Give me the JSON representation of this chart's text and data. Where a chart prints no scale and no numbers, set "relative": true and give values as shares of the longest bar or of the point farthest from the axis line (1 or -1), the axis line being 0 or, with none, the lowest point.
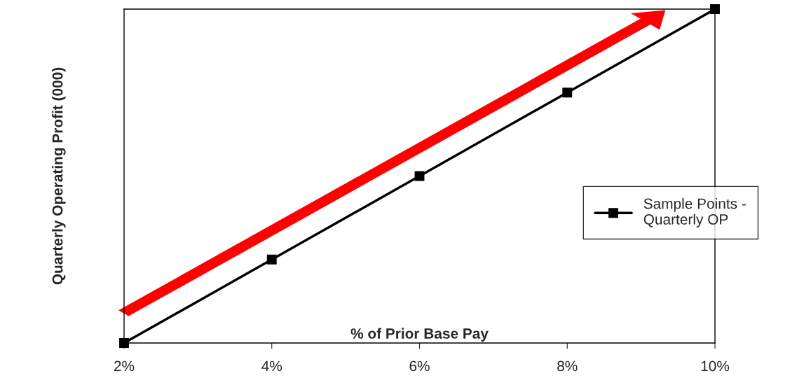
{
  "chart_data": {
    "type": "line",
    "relative": true,
    "xlabel": "% of Prior Base Pay",
    "ylabel": "Quarterly Operating Profit (000)",
    "x": [
      2,
      4,
      6,
      8,
      10
    ],
    "xlim": [
      2,
      10
    ],
    "xticks": [
      {
        "value": 2,
        "label": "2%"
      },
      {
        "value": 4,
        "label": "4%"
      },
      {
        "value": 6,
        "label": "6%"
      },
      {
        "value": 8,
        "label": "8%"
      },
      {
        "value": 10,
        "label": "10%"
      }
    ],
    "series": [
      {
        "name": "Sample Points -\nQuarterly OP",
        "color": "#000000",
        "values": [
          0,
          0.25,
          0.5,
          0.75,
          1
        ]
      }
    ],
    "marker": "square",
    "line_style": "solid",
    "legend": "right",
    "grid": false
  }
}
